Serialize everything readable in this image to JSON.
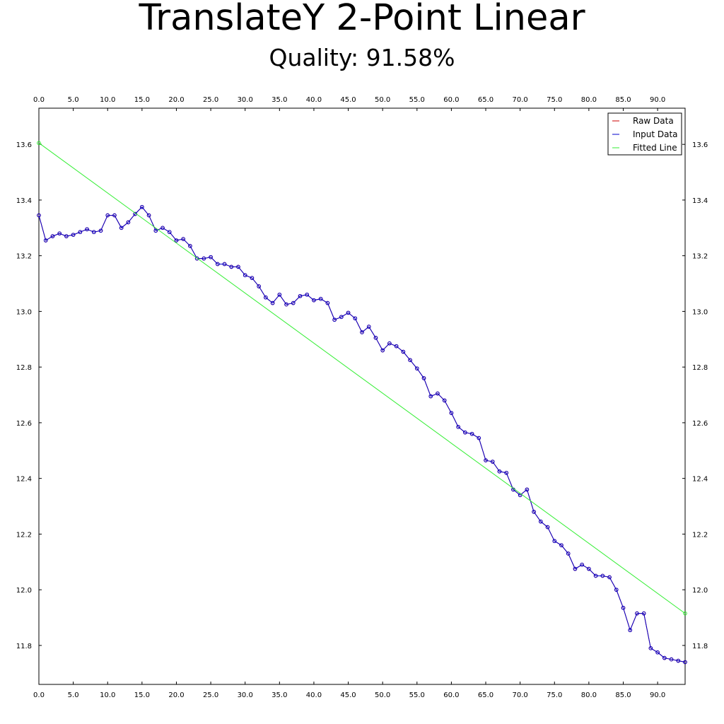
{
  "chart_data": {
    "type": "line",
    "title": "TranslateY 2-Point Linear",
    "subtitle": "Quality: 91.58%",
    "xlabel": "",
    "ylabel": "",
    "xlim": [
      0,
      94
    ],
    "ylim": [
      11.66,
      13.73
    ],
    "x_ticks": [
      0,
      5,
      10,
      15,
      20,
      25,
      30,
      35,
      40,
      45,
      50,
      55,
      60,
      65,
      70,
      75,
      80,
      85,
      90
    ],
    "x_tick_labels": [
      "0.0",
      "5.0",
      "10.0",
      "15.0",
      "20.0",
      "25.0",
      "30.0",
      "35.0",
      "40.0",
      "45.0",
      "50.0",
      "55.0",
      "60.0",
      "65.0",
      "70.0",
      "75.0",
      "80.0",
      "85.0",
      "90.0"
    ],
    "y_ticks": [
      11.8,
      12.0,
      12.2,
      12.4,
      12.6,
      12.8,
      13.0,
      13.2,
      13.4,
      13.6
    ],
    "y_tick_labels": [
      "11.8",
      "12.0",
      "12.2",
      "12.4",
      "12.6",
      "12.8",
      "13.0",
      "13.2",
      "13.4",
      "13.6"
    ],
    "grid": false,
    "legend_position": "top-right",
    "legend": [
      {
        "name": "Raw Data",
        "color": "#cc0000"
      },
      {
        "name": "Input Data",
        "color": "#0000cc"
      },
      {
        "name": "Fitted Line",
        "color": "#33ee33"
      }
    ],
    "series": [
      {
        "name": "Raw Data",
        "color": "#cc0000",
        "x_start": 0,
        "x_step": 1,
        "values": [
          13.345,
          13.255,
          13.27,
          13.28,
          13.27,
          13.275,
          13.285,
          13.295,
          13.285,
          13.29,
          13.345,
          13.345,
          13.3,
          13.32,
          13.35,
          13.375,
          13.345,
          13.29,
          13.3,
          13.285,
          13.255,
          13.26,
          13.235,
          13.19,
          13.19,
          13.195,
          13.17,
          13.17,
          13.16,
          13.16,
          13.13,
          13.12,
          13.09,
          13.05,
          13.03,
          13.06,
          13.025,
          13.03,
          13.055,
          13.06,
          13.04,
          13.045,
          13.03,
          12.97,
          12.98,
          12.995,
          12.975,
          12.925,
          12.945,
          12.905,
          12.86,
          12.885,
          12.875,
          12.855,
          12.825,
          12.795,
          12.76,
          12.695,
          12.705,
          12.68,
          12.635,
          12.585,
          12.565,
          12.56,
          12.545,
          12.465,
          12.46,
          12.425,
          12.42,
          12.36,
          12.34,
          12.36,
          12.28,
          12.245,
          12.225,
          12.175,
          12.16,
          12.13,
          12.075,
          12.09,
          12.075,
          12.05,
          12.05,
          12.045,
          12.0,
          11.935,
          11.855,
          11.915,
          11.915,
          11.79,
          11.775,
          11.755,
          11.75,
          11.745,
          11.74
        ]
      },
      {
        "name": "Input Data",
        "color": "#0000cc",
        "x_start": 0,
        "x_step": 1,
        "values": [
          13.345,
          13.255,
          13.27,
          13.28,
          13.27,
          13.275,
          13.285,
          13.295,
          13.285,
          13.29,
          13.345,
          13.345,
          13.3,
          13.32,
          13.35,
          13.375,
          13.345,
          13.29,
          13.3,
          13.285,
          13.255,
          13.26,
          13.235,
          13.19,
          13.19,
          13.195,
          13.17,
          13.17,
          13.16,
          13.16,
          13.13,
          13.12,
          13.09,
          13.05,
          13.03,
          13.06,
          13.025,
          13.03,
          13.055,
          13.06,
          13.04,
          13.045,
          13.03,
          12.97,
          12.98,
          12.995,
          12.975,
          12.925,
          12.945,
          12.905,
          12.86,
          12.885,
          12.875,
          12.855,
          12.825,
          12.795,
          12.76,
          12.695,
          12.705,
          12.68,
          12.635,
          12.585,
          12.565,
          12.56,
          12.545,
          12.465,
          12.46,
          12.425,
          12.42,
          12.36,
          12.34,
          12.36,
          12.28,
          12.245,
          12.225,
          12.175,
          12.16,
          12.13,
          12.075,
          12.09,
          12.075,
          12.05,
          12.05,
          12.045,
          12.0,
          11.935,
          11.855,
          11.915,
          11.915,
          11.79,
          11.775,
          11.755,
          11.75,
          11.745,
          11.74
        ]
      },
      {
        "name": "Fitted Line",
        "color": "#33ee33",
        "x": [
          0,
          94
        ],
        "values": [
          13.605,
          11.915
        ]
      }
    ]
  }
}
